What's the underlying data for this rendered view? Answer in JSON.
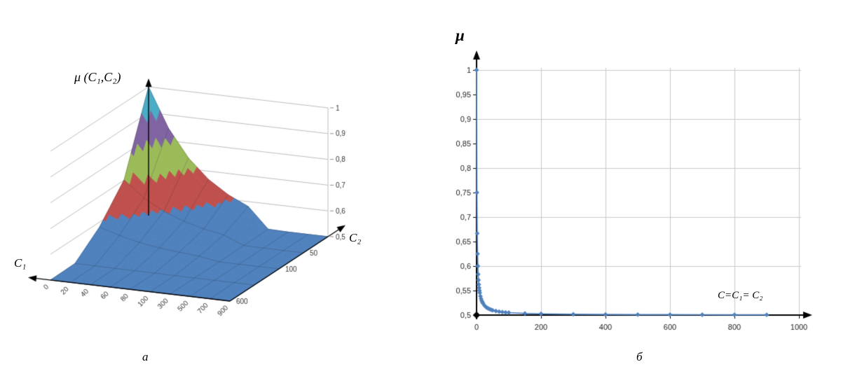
{
  "figure": {
    "background": "#ffffff"
  },
  "chart_data": [
    {
      "type": "surface",
      "panel_label": "а",
      "z_label": "μ (C₁,C₂)",
      "x_label": "C₁",
      "depth_label": "C₂",
      "x_tick_labels": [
        "0",
        "20",
        "40",
        "60",
        "80",
        "100",
        "300",
        "500",
        "700",
        "900"
      ],
      "x_values": [
        0,
        20,
        40,
        60,
        80,
        100,
        300,
        500,
        700,
        900
      ],
      "depth_tick_labels": [
        "50",
        "100",
        "600"
      ],
      "depth_label_rows": [
        1,
        2,
        4
      ],
      "depth_grid_values": [
        0,
        50,
        100,
        300,
        600
      ],
      "z_tick_labels": [
        "1",
        "0,9",
        "0,8",
        "0,7",
        "0,6",
        "0,5"
      ],
      "z_range": [
        0.5,
        1
      ],
      "band_size": 0.1,
      "band_colors": [
        "#4f81bd",
        "#c0504d",
        "#9bbb59",
        "#8064a2",
        "#4bacc6"
      ],
      "z_grid": [
        [
          1.0,
          0.848,
          0.742,
          0.668,
          0.617,
          0.581,
          0.502,
          0.5,
          0.5,
          0.5
        ],
        [
          0.701,
          0.64,
          0.597,
          0.568,
          0.547,
          0.533,
          0.501,
          0.5,
          0.5,
          0.5
        ],
        [
          0.581,
          0.557,
          0.539,
          0.527,
          0.519,
          0.513,
          0.5,
          0.5,
          0.5,
          0.5
        ],
        [
          0.502,
          0.502,
          0.501,
          0.501,
          0.501,
          0.5,
          0.5,
          0.5,
          0.5,
          0.5
        ],
        [
          0.5,
          0.5,
          0.5,
          0.5,
          0.5,
          0.5,
          0.5,
          0.5,
          0.5,
          0.5
        ]
      ]
    },
    {
      "type": "line",
      "panel_label": "б",
      "ylabel": "μ",
      "xlabel": "C=C₁= C₂",
      "x_ticks": [
        "0",
        "200",
        "400",
        "600",
        "800",
        "1000"
      ],
      "y_ticks": [
        "1",
        "0,95",
        "0,9",
        "0,85",
        "0,8",
        "0,75",
        "0,7",
        "0,65",
        "0,6",
        "0,55",
        "0,5"
      ],
      "xlim": [
        0,
        1000
      ],
      "ylim": [
        0.5,
        1.0
      ],
      "line_color": "#4f81bd",
      "grid_color": "#c9c9c9",
      "marker": "diamond",
      "origin_point": {
        "x": 0,
        "y": 0.5,
        "color": "#000000"
      },
      "x": [
        0,
        1,
        2,
        3,
        4,
        5,
        6,
        7,
        8,
        9,
        10,
        12,
        14,
        16,
        18,
        20,
        25,
        30,
        35,
        40,
        45,
        50,
        60,
        70,
        80,
        90,
        100,
        150,
        200,
        300,
        400,
        500,
        600,
        700,
        800,
        900
      ],
      "y": [
        1.0,
        0.75,
        0.6667,
        0.625,
        0.6,
        0.5833,
        0.5714,
        0.5625,
        0.5556,
        0.55,
        0.5455,
        0.5385,
        0.5333,
        0.5294,
        0.5263,
        0.5238,
        0.5192,
        0.5161,
        0.5139,
        0.5122,
        0.5109,
        0.5098,
        0.5082,
        0.507,
        0.5062,
        0.5055,
        0.505,
        0.5033,
        0.5025,
        0.5017,
        0.5012,
        0.501,
        0.5008,
        0.5007,
        0.5006,
        0.5006
      ]
    }
  ]
}
